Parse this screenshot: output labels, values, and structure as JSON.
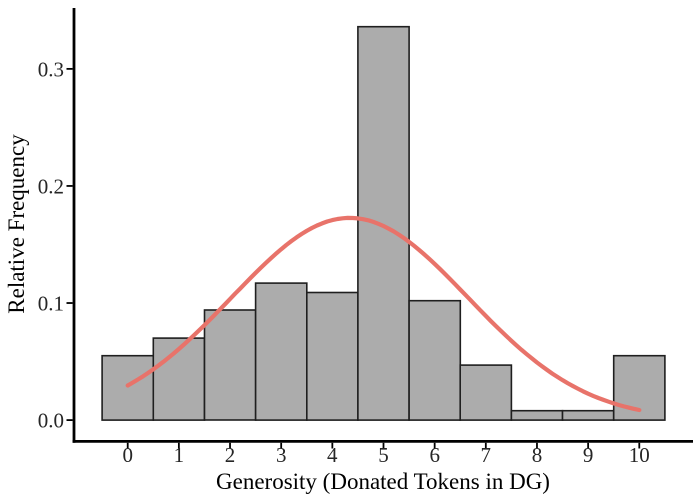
{
  "figure": {
    "background_color": "#ffffff"
  },
  "chart_data": {
    "type": "bar",
    "subtype": "histogram-with-density-curve",
    "title": "",
    "xlabel": "Generosity (Donated Tokens in DG)",
    "ylabel": "Relative Frequency",
    "categories": [
      0,
      1,
      2,
      3,
      4,
      5,
      6,
      7,
      8,
      9,
      10
    ],
    "values": [
      0.055,
      0.07,
      0.094,
      0.117,
      0.109,
      0.336,
      0.102,
      0.047,
      0.008,
      0.008,
      0.055
    ],
    "bar_width": 1,
    "xlim": [
      -1.05,
      11.05
    ],
    "ylim": [
      -0.017,
      0.352
    ],
    "x_ticks": [
      0,
      1,
      2,
      3,
      4,
      5,
      6,
      7,
      8,
      9,
      10
    ],
    "x_tick_labels": [
      "0",
      "1",
      "2",
      "3",
      "4",
      "5",
      "6",
      "7",
      "8",
      "9",
      "10"
    ],
    "y_ticks": [
      0.0,
      0.1,
      0.2,
      0.3
    ],
    "y_tick_labels": [
      "0.0",
      "0.1",
      "0.2",
      "0.3"
    ],
    "grid": false,
    "legend": "none",
    "overlay_curve": {
      "kind": "normal-density",
      "mean": 4.34,
      "sd": 2.31,
      "peak_value": 0.173,
      "x_range": [
        0,
        10
      ],
      "endpoint_values": {
        "x0": 0.03,
        "x10": 0.009
      },
      "color": "#e8736a",
      "stroke_width": 4.2
    },
    "colors": {
      "bar_fill": "#acacac",
      "bar_stroke": "#1f1f1f",
      "axis": "#000000",
      "tick_text": "#262626",
      "title_text": "#000000"
    }
  }
}
